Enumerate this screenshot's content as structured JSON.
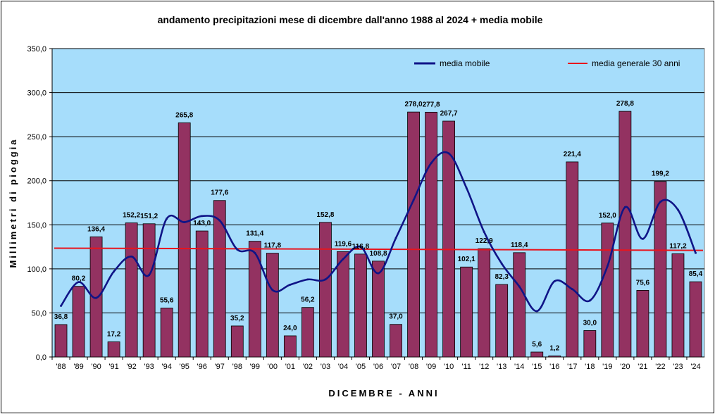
{
  "chart_data": {
    "type": "bar",
    "title": "andamento precipitazioni mese di dicembre dall'anno 1988 al 2024 + media mobile",
    "xlabel": "DICEMBRE - ANNI",
    "ylabel": "Millimetri di pioggia",
    "ylim": [
      0,
      350
    ],
    "yticks": [
      "0,0",
      "50,0",
      "100,0",
      "150,0",
      "200,0",
      "250,0",
      "300,0",
      "350,0"
    ],
    "ytick_values": [
      0,
      50,
      100,
      150,
      200,
      250,
      300,
      350
    ],
    "categories": [
      "'88",
      "'89",
      "'90",
      "'91",
      "'92",
      "'93",
      "'94",
      "'95",
      "'96",
      "'97",
      "'98",
      "'99",
      "'00",
      "'01",
      "'02",
      "'03",
      "'04",
      "'05",
      "'06",
      "'07",
      "'08",
      "'09",
      "'10",
      "'11",
      "'12",
      "'13",
      "'14",
      "'15",
      "'16",
      "'17",
      "'18",
      "'19",
      "'20",
      "'21",
      "'22",
      "'23",
      "'24"
    ],
    "values": [
      36.8,
      80.2,
      136.4,
      17.2,
      152.2,
      151.2,
      55.6,
      265.8,
      143.0,
      177.6,
      35.2,
      131.4,
      117.8,
      24.0,
      56.2,
      152.8,
      119.6,
      116.8,
      108.8,
      37.0,
      278.0,
      277.8,
      267.7,
      102.1,
      122.9,
      82.3,
      118.4,
      5.6,
      1.2,
      221.4,
      30.0,
      152.0,
      278.8,
      75.6,
      199.2,
      117.2,
      85.4
    ],
    "value_labels": [
      "36,8",
      "80,2",
      "136,4",
      "17,2",
      "152,2",
      "151,2",
      "55,6",
      "265,8",
      "143,0",
      "177,6",
      "35,2",
      "131,4",
      "117,8",
      "24,0",
      "56,2",
      "152,8",
      "119,6",
      "116,8",
      "108,8",
      "37,0",
      "278,0",
      "277,8",
      "267,7",
      "102,1",
      "122,9",
      "82,3",
      "118,4",
      "5,6",
      "1,2",
      "221,4",
      "30,0",
      "152,0",
      "278,8",
      "75,6",
      "199,2",
      "117,2",
      "85,4"
    ],
    "moving_average": {
      "name": "media mobile",
      "values": [
        58,
        85,
        67,
        97,
        114,
        93,
        157,
        153,
        160,
        155,
        122,
        118,
        76,
        82,
        88,
        88,
        111,
        125,
        95,
        135,
        178,
        220,
        231,
        192,
        142,
        106,
        80,
        52,
        86,
        77,
        64,
        103,
        170,
        134,
        176,
        167,
        118
      ]
    },
    "mean_line": {
      "name": "media generale 30 anni",
      "start": 123.5,
      "end": 121.0
    },
    "colors": {
      "plot_bg": "#A6DDFB",
      "bar": "#933261",
      "moving_average": "#0F1487",
      "mean_line": "#E8141D",
      "grid": "#000000"
    },
    "legend_position": "top-right"
  }
}
